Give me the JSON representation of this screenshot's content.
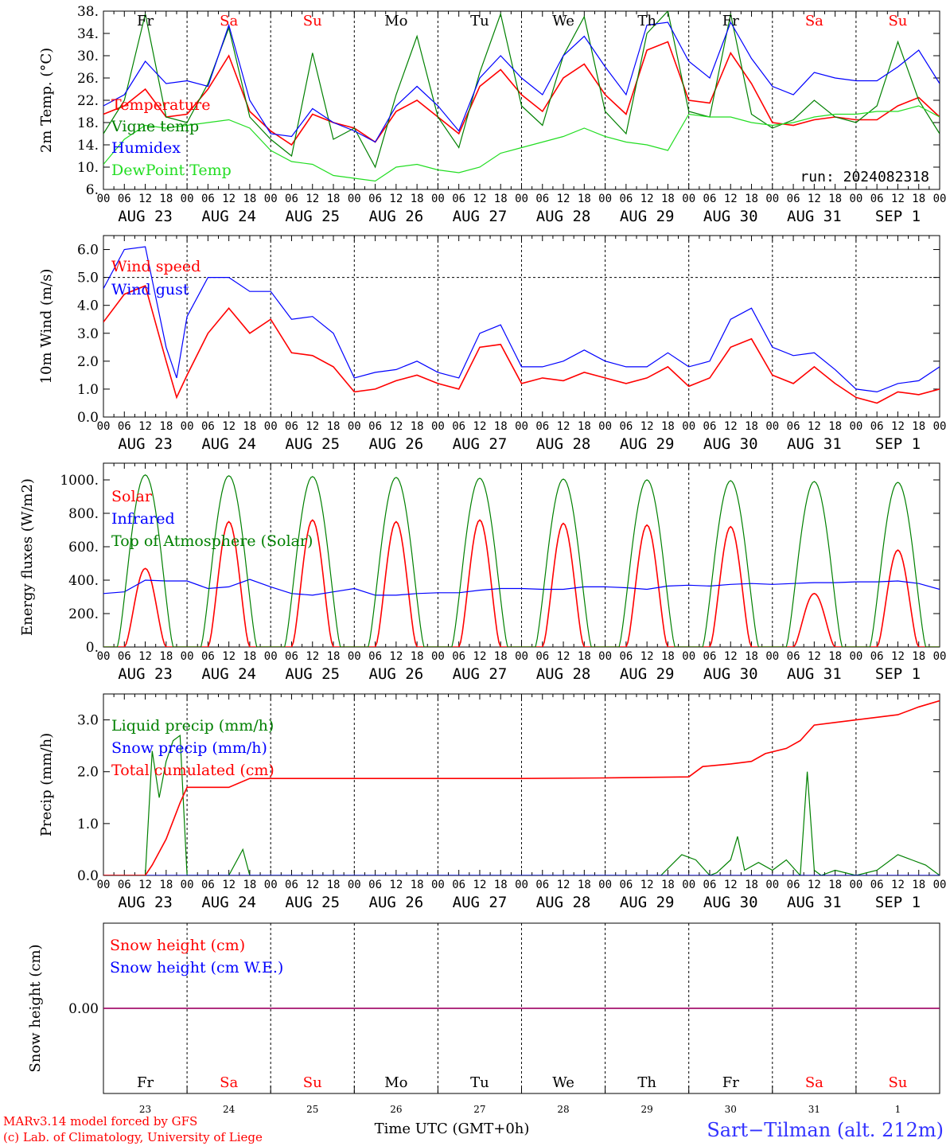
{
  "run": "run: 2024082318",
  "credit_line1": "MARv3.14 model forced by GFS",
  "credit_line2": "(c) Lab. of Climatology, University of Liege",
  "station": "Sart−Tilman (alt. 212m)",
  "xaxis_title": "Time UTC (GMT+0h)",
  "date_labels": [
    "AUG 23",
    "AUG 24",
    "AUG 25",
    "AUG 26",
    "AUG 27",
    "AUG 28",
    "AUG 29",
    "AUG 30",
    "AUG 31",
    "SEP  1"
  ],
  "day_names": [
    "Fr",
    "Sa",
    "Su",
    "Mo",
    "Tu",
    "We",
    "Th",
    "Fr",
    "Sa",
    "Su"
  ],
  "day_numbers": [
    "23",
    "24",
    "25",
    "26",
    "27",
    "28",
    "29",
    "30",
    "31",
    "1"
  ],
  "weekend_color": "#ff0000",
  "hour_labels": [
    "00",
    "06",
    "12",
    "18"
  ],
  "colors": {
    "red": "#ff0000",
    "green": "#008000",
    "blue": "#0000ff",
    "light_green": "#22dd22",
    "purple": "#800080"
  },
  "chart_data": [
    {
      "type": "line",
      "ylabel": "2m Temp. (°C)",
      "ylim": [
        6,
        38
      ],
      "yticks": [
        "6.",
        "10.",
        "14.",
        "18.",
        "22.",
        "26.",
        "30.",
        "34.",
        "38."
      ],
      "x_unit": "hours since 2024-08-23 00 UTC",
      "series": [
        {
          "name": "Temperature",
          "color": "red",
          "x": [
            0,
            6,
            12,
            18,
            24,
            30,
            36,
            42,
            48,
            54,
            60,
            66,
            72,
            78,
            84,
            90,
            96,
            102,
            108,
            114,
            120,
            126,
            132,
            138,
            144,
            150,
            156,
            162,
            168,
            174,
            180,
            186,
            192,
            198,
            204,
            210,
            216,
            222,
            228,
            234,
            240
          ],
          "y": [
            19.5,
            21,
            24,
            19,
            19.5,
            24,
            30,
            20,
            16.5,
            14,
            19.5,
            18,
            17,
            14.5,
            20,
            22,
            19,
            16,
            24.5,
            27.5,
            23,
            20,
            26,
            28.5,
            23,
            19.5,
            31,
            32.5,
            22,
            21.5,
            30.5,
            25,
            18,
            17.5,
            18.5,
            19,
            18.5,
            18.5,
            21,
            22.5,
            19
          ]
        },
        {
          "name": "Vigne temp",
          "color": "green",
          "x": [
            0,
            6,
            12,
            18,
            24,
            30,
            36,
            42,
            48,
            54,
            60,
            66,
            72,
            78,
            84,
            90,
            96,
            102,
            108,
            114,
            120,
            126,
            132,
            138,
            144,
            150,
            156,
            162,
            168,
            174,
            180,
            186,
            192,
            198,
            204,
            210,
            216,
            222,
            228,
            234,
            240
          ],
          "y": [
            16,
            22,
            37.5,
            19,
            18,
            25,
            35,
            19,
            15,
            12,
            30.5,
            15,
            17,
            10,
            23,
            33.5,
            19,
            13.5,
            27,
            37.5,
            21,
            17.5,
            30,
            37,
            20,
            16,
            34,
            38,
            20,
            19,
            37.5,
            19.5,
            17,
            18.5,
            22,
            19,
            18,
            21,
            32.5,
            22,
            16
          ]
        },
        {
          "name": "Humidex",
          "color": "blue",
          "x": [
            0,
            6,
            12,
            18,
            24,
            30,
            36,
            42,
            48,
            54,
            60,
            66,
            72,
            78,
            84,
            90,
            96,
            102,
            108,
            114,
            120,
            126,
            132,
            138,
            144,
            150,
            156,
            162,
            168,
            174,
            180,
            186,
            192,
            198,
            204,
            210,
            216,
            222,
            228,
            234,
            240
          ],
          "y": [
            21,
            23,
            29,
            25,
            25.5,
            24.5,
            35.5,
            22,
            16,
            15.5,
            20.5,
            18,
            16.5,
            14.5,
            21,
            24.5,
            21,
            16.5,
            26,
            30,
            26,
            23,
            30,
            33.5,
            28,
            23,
            35.5,
            36,
            29,
            26,
            36,
            29.5,
            24.5,
            23,
            27,
            26,
            25.5,
            25.5,
            28,
            31,
            25
          ]
        },
        {
          "name": "DewPoint Temp",
          "color": "light_green",
          "x": [
            0,
            6,
            12,
            18,
            24,
            30,
            36,
            42,
            48,
            54,
            60,
            66,
            72,
            78,
            84,
            90,
            96,
            102,
            108,
            114,
            120,
            126,
            132,
            138,
            144,
            150,
            156,
            162,
            168,
            174,
            180,
            186,
            192,
            198,
            204,
            210,
            216,
            222,
            228,
            234,
            240
          ],
          "y": [
            10.5,
            15,
            17.5,
            17,
            17.5,
            18,
            18.5,
            17,
            13,
            11,
            10.5,
            8.5,
            8,
            7.5,
            10,
            10.5,
            9.5,
            9,
            10,
            12.5,
            13.5,
            14.5,
            15.5,
            17,
            15.5,
            14.5,
            14,
            13,
            19.5,
            19,
            19,
            18,
            17.5,
            18,
            19,
            19.5,
            19.5,
            20,
            20,
            21,
            19
          ]
        }
      ]
    },
    {
      "type": "line",
      "ylabel": "10m Wind (m/s)",
      "ylim": [
        0,
        6.5
      ],
      "yticks": [
        "0.0",
        "1.0",
        "2.0",
        "3.0",
        "4.0",
        "5.0",
        "6.0"
      ],
      "x_unit": "hours since 2024-08-23 00 UTC",
      "series": [
        {
          "name": "Wind speed",
          "color": "red",
          "x": [
            0,
            6,
            12,
            18,
            21,
            24,
            30,
            36,
            42,
            48,
            54,
            60,
            66,
            72,
            78,
            84,
            90,
            96,
            102,
            108,
            114,
            120,
            126,
            132,
            138,
            144,
            150,
            156,
            162,
            168,
            174,
            180,
            186,
            192,
            198,
            204,
            210,
            216,
            222,
            228,
            234,
            240
          ],
          "y": [
            3.4,
            4.4,
            4.7,
            2,
            0.7,
            1.5,
            3,
            3.9,
            3,
            3.5,
            2.3,
            2.2,
            1.8,
            0.9,
            1,
            1.3,
            1.5,
            1.2,
            1,
            2.5,
            2.6,
            1.2,
            1.4,
            1.3,
            1.6,
            1.4,
            1.2,
            1.4,
            1.8,
            1.1,
            1.4,
            2.5,
            2.8,
            1.5,
            1.2,
            1.8,
            1.2,
            0.7,
            0.5,
            0.9,
            0.8,
            1
          ]
        },
        {
          "name": "Wind gust",
          "color": "blue",
          "x": [
            0,
            6,
            12,
            18,
            21,
            24,
            30,
            36,
            42,
            48,
            54,
            60,
            66,
            72,
            78,
            84,
            90,
            96,
            102,
            108,
            114,
            120,
            126,
            132,
            138,
            144,
            150,
            156,
            162,
            168,
            174,
            180,
            186,
            192,
            198,
            204,
            210,
            216,
            222,
            228,
            234,
            240
          ],
          "y": [
            4.6,
            6,
            6.1,
            2.5,
            1.4,
            3.6,
            5,
            5,
            4.5,
            4.5,
            3.5,
            3.6,
            3,
            1.4,
            1.6,
            1.7,
            2,
            1.6,
            1.4,
            3,
            3.3,
            1.8,
            1.8,
            2,
            2.4,
            2,
            1.8,
            1.8,
            2.3,
            1.8,
            2,
            3.5,
            3.9,
            2.5,
            2.2,
            2.3,
            1.7,
            1,
            0.9,
            1.2,
            1.3,
            1.8
          ]
        }
      ]
    },
    {
      "type": "line",
      "ylabel": "Energy fluxes (W/m2)",
      "ylim": [
        0,
        1100
      ],
      "yticks": [
        "0.",
        "200.",
        "400.",
        "600.",
        "800.",
        "1000."
      ],
      "x_unit": "hours since 2024-08-23 00 UTC",
      "series": [
        {
          "name": "Solar",
          "color": "red",
          "peaks": [
            470,
            750,
            760,
            750,
            760,
            740,
            730,
            720,
            320,
            580
          ],
          "peak_hour_offset": 12
        },
        {
          "name": "Infrared",
          "color": "blue",
          "x": [
            0,
            6,
            12,
            18,
            24,
            30,
            36,
            42,
            48,
            54,
            60,
            66,
            72,
            78,
            84,
            90,
            96,
            102,
            108,
            114,
            120,
            126,
            132,
            138,
            144,
            150,
            156,
            162,
            168,
            174,
            180,
            186,
            192,
            198,
            204,
            210,
            216,
            222,
            228,
            234,
            240
          ],
          "y": [
            320,
            330,
            400,
            395,
            395,
            350,
            360,
            405,
            360,
            320,
            310,
            330,
            350,
            310,
            310,
            320,
            325,
            325,
            340,
            350,
            350,
            345,
            345,
            360,
            360,
            355,
            345,
            365,
            370,
            365,
            375,
            380,
            375,
            380,
            385,
            385,
            390,
            390,
            395,
            380,
            345
          ]
        },
        {
          "name": "Top of Atmosphere (Solar)",
          "color": "green",
          "peaks": [
            1030,
            1025,
            1020,
            1015,
            1010,
            1005,
            1000,
            995,
            990,
            985
          ],
          "peak_hour_offset": 12
        }
      ]
    },
    {
      "type": "line",
      "ylabel": "Precip (mm/h)",
      "ylim": [
        0,
        3.5
      ],
      "yticks": [
        "0.0",
        "1.0",
        "2.0",
        "3.0"
      ],
      "x_unit": "hours since 2024-08-23 00 UTC",
      "series": [
        {
          "name": "Liquid precip (mm/h)",
          "color": "green",
          "x": [
            0,
            12,
            14,
            16,
            18,
            20,
            22,
            24,
            36,
            40,
            42,
            140,
            150,
            160,
            166,
            170,
            174,
            176,
            180,
            182,
            184,
            188,
            192,
            196,
            200,
            202,
            204,
            206,
            210,
            216,
            222,
            228,
            232,
            236,
            240
          ],
          "y": [
            0,
            0,
            2.4,
            1.5,
            2.2,
            2.6,
            2.7,
            0,
            0,
            0.5,
            0,
            0,
            0,
            0,
            0.4,
            0.3,
            0,
            0.05,
            0.3,
            0.75,
            0.1,
            0.25,
            0.1,
            0.3,
            0,
            2.0,
            0.1,
            0,
            0.1,
            0,
            0.1,
            0.4,
            0.3,
            0.2,
            0
          ]
        },
        {
          "name": "Snow precip (mm/h)",
          "color": "blue",
          "x": [
            0,
            240
          ],
          "y": [
            0,
            0
          ]
        },
        {
          "name": "Total cumulated (cm)",
          "color": "red",
          "x": [
            0,
            12,
            14,
            18,
            22,
            24,
            36,
            42,
            48,
            96,
            120,
            144,
            168,
            172,
            180,
            186,
            190,
            196,
            200,
            204,
            210,
            216,
            222,
            228,
            234,
            240
          ],
          "y": [
            0,
            0,
            0.2,
            0.7,
            1.4,
            1.7,
            1.7,
            1.87,
            1.87,
            1.87,
            1.87,
            1.88,
            1.9,
            2.1,
            2.15,
            2.2,
            2.35,
            2.45,
            2.6,
            2.9,
            2.95,
            3.0,
            3.05,
            3.1,
            3.25,
            3.37
          ]
        }
      ]
    },
    {
      "type": "line",
      "ylabel": "Snow height (cm)",
      "ylim": [
        -1,
        1
      ],
      "yticks": [
        "0.00"
      ],
      "x_unit": "hours since 2024-08-23 00 UTC",
      "series": [
        {
          "name": "Snow height (cm)",
          "color": "red",
          "x": [
            0,
            240
          ],
          "y": [
            0,
            0
          ]
        },
        {
          "name": "Snow height (cm W.E.)",
          "color": "blue",
          "x": [
            0,
            240
          ],
          "y": [
            0,
            0
          ]
        }
      ]
    }
  ]
}
